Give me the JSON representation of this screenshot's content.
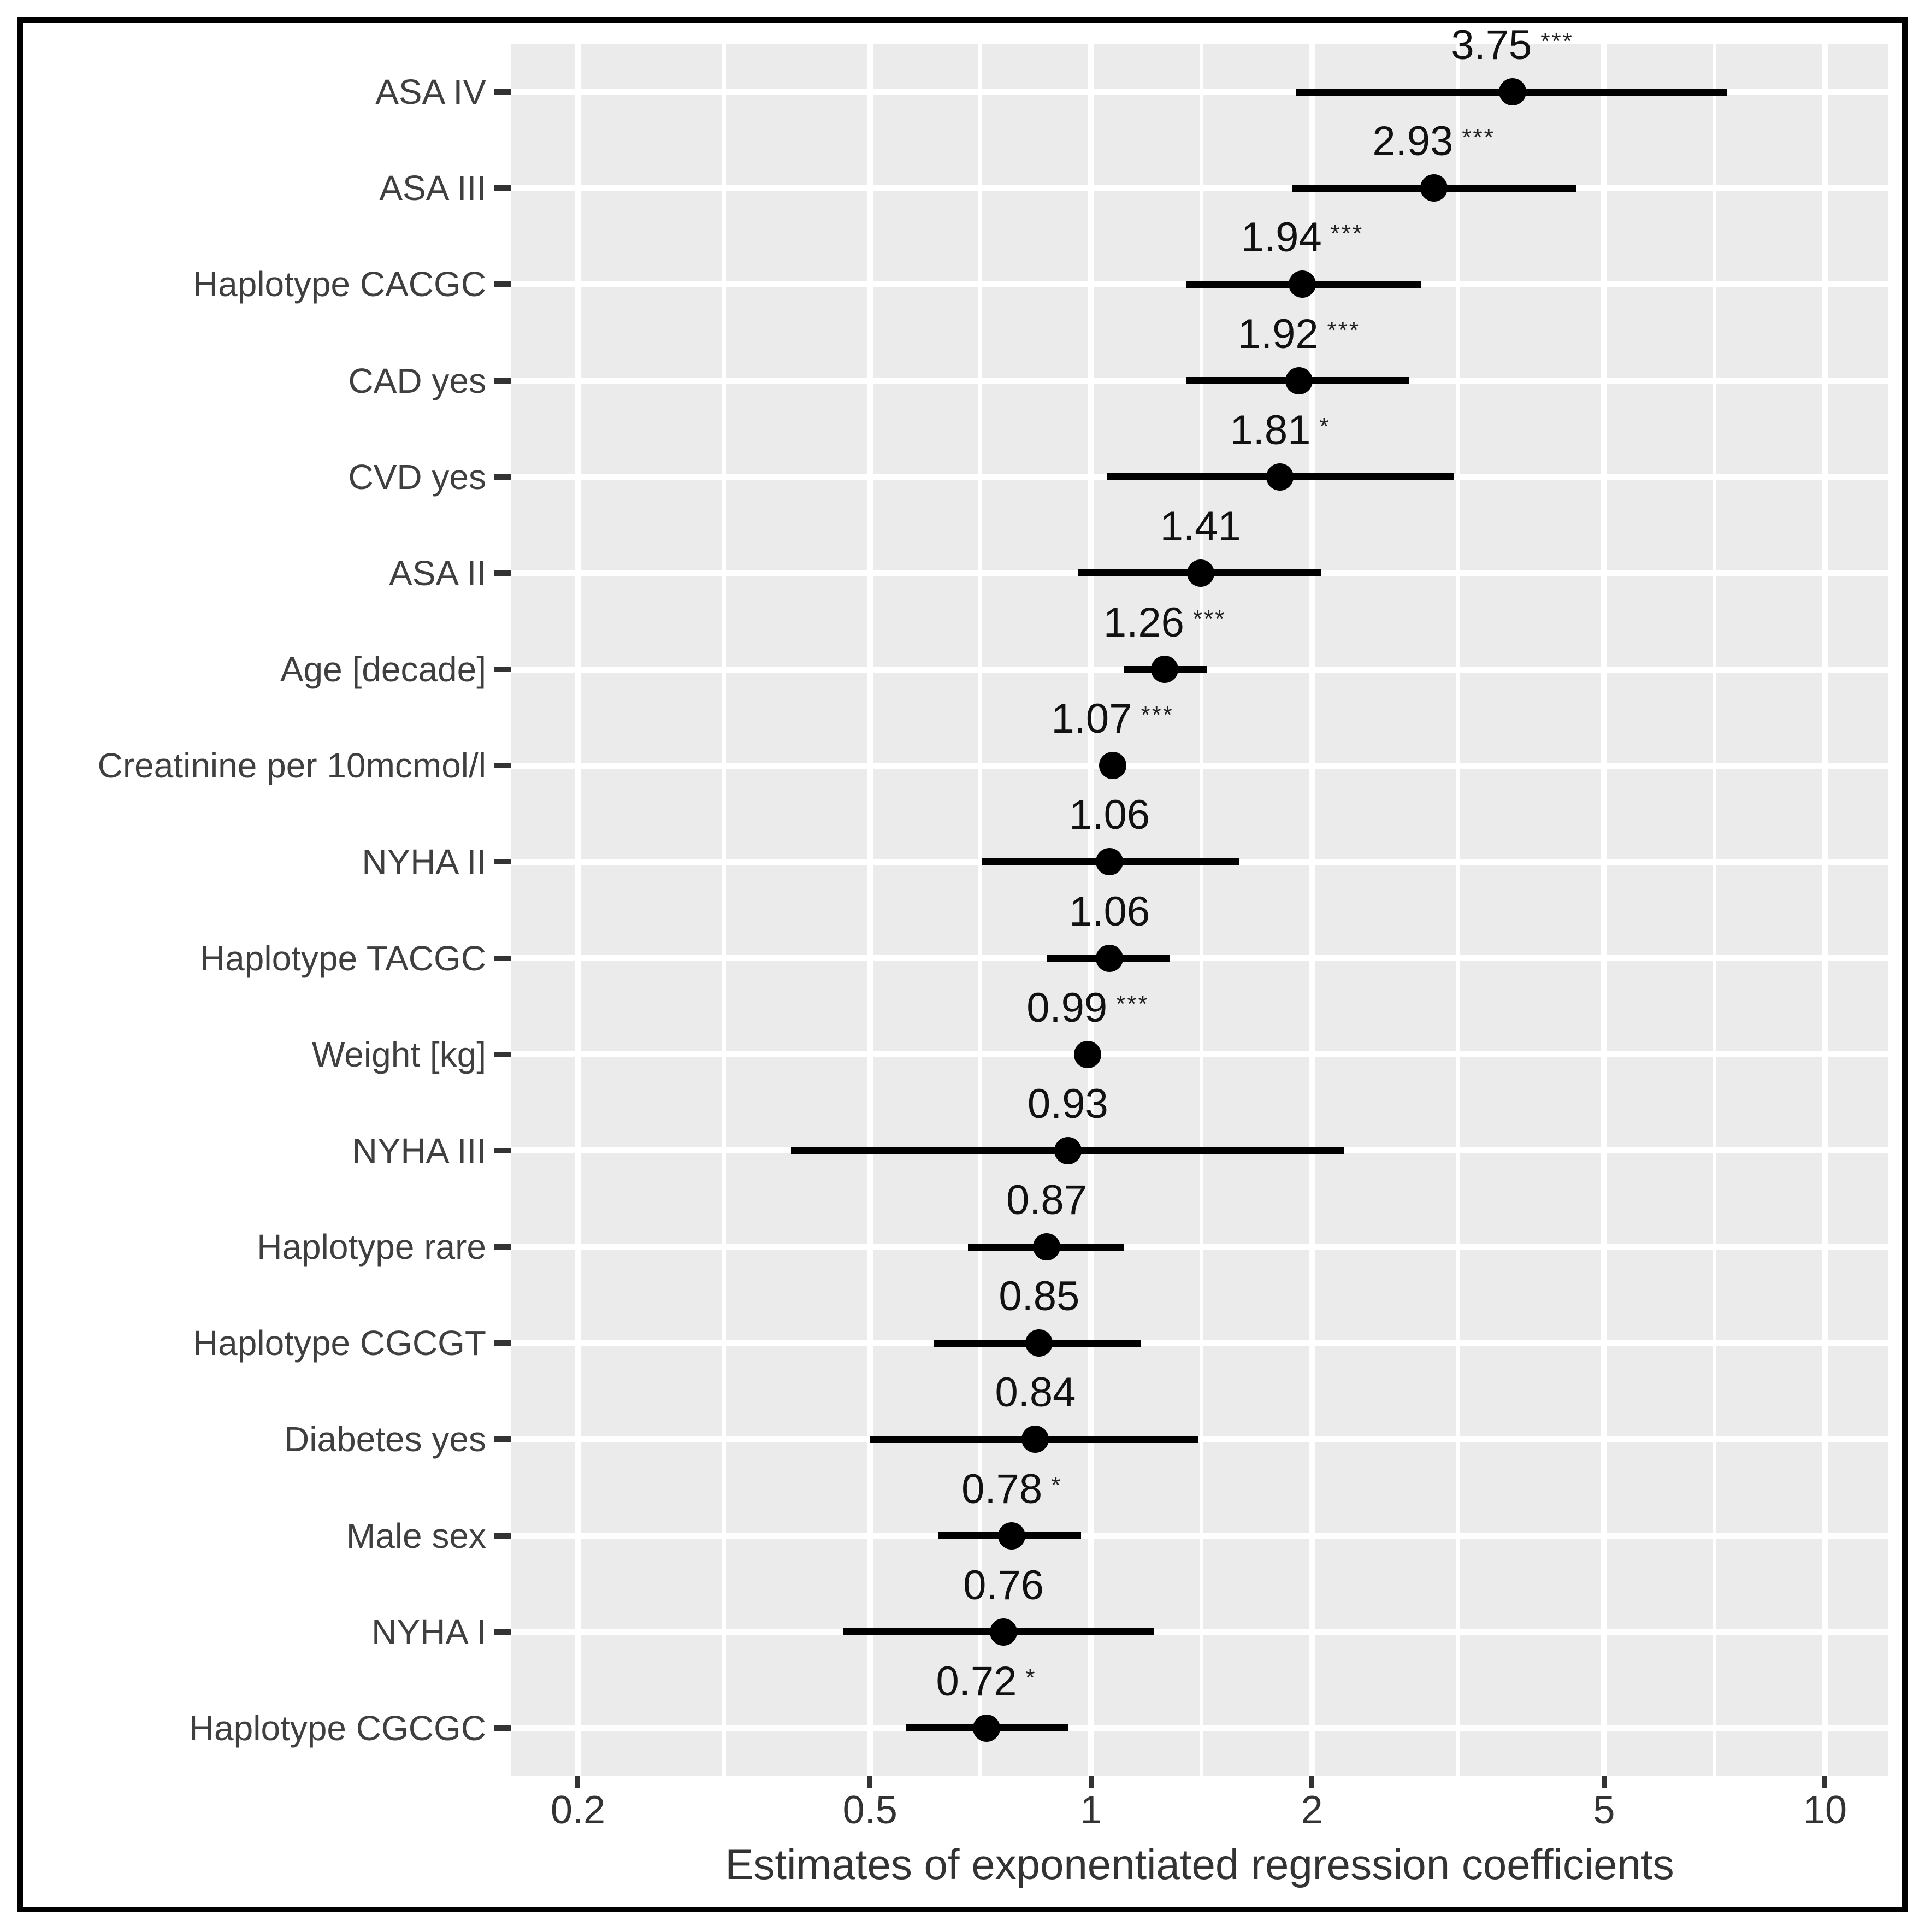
{
  "figure": {
    "x_axis_title": "Estimates of exponentiated regression coefficients"
  },
  "chart_data": {
    "type": "scatter",
    "subtype": "forest-plot",
    "title": "",
    "xlabel": "Estimates of exponentiated regression coefficients",
    "ylabel": "",
    "x_scale": "log10",
    "x_domain": [
      0.162,
      12.2
    ],
    "x_ticks": [
      {
        "value": 0.2,
        "label": "0.2"
      },
      {
        "value": 0.5,
        "label": "0.5"
      },
      {
        "value": 1,
        "label": "1"
      },
      {
        "value": 2,
        "label": "2"
      },
      {
        "value": 5,
        "label": "5"
      },
      {
        "value": 10,
        "label": "10"
      }
    ],
    "x_minor_ticks": [
      0.3162,
      0.7071,
      1.4142,
      3.1623,
      7.0711
    ],
    "grid": true,
    "legend": "none",
    "rows": [
      {
        "label": "ASA IV",
        "estimate": 3.75,
        "stars": "***",
        "ci_low": 1.9,
        "ci_high": 7.35
      },
      {
        "label": "ASA III",
        "estimate": 2.93,
        "stars": "***",
        "ci_low": 1.88,
        "ci_high": 4.58
      },
      {
        "label": "Haplotype CACGC",
        "estimate": 1.94,
        "stars": "***",
        "ci_low": 1.35,
        "ci_high": 2.82
      },
      {
        "label": "CAD yes",
        "estimate": 1.92,
        "stars": "***",
        "ci_low": 1.35,
        "ci_high": 2.71
      },
      {
        "label": "CVD yes",
        "estimate": 1.81,
        "stars": "*",
        "ci_low": 1.05,
        "ci_high": 3.12
      },
      {
        "label": "ASA II",
        "estimate": 1.41,
        "stars": "",
        "ci_low": 0.96,
        "ci_high": 2.06
      },
      {
        "label": "Age [decade]",
        "estimate": 1.26,
        "stars": "***",
        "ci_low": 1.11,
        "ci_high": 1.44
      },
      {
        "label": "Creatinine per 10mcmol/l",
        "estimate": 1.07,
        "stars": "***",
        "ci_low": 1.04,
        "ci_high": 1.1
      },
      {
        "label": "NYHA II",
        "estimate": 1.06,
        "stars": "",
        "ci_low": 0.71,
        "ci_high": 1.59
      },
      {
        "label": "Haplotype TACGC",
        "estimate": 1.06,
        "stars": "",
        "ci_low": 0.87,
        "ci_high": 1.28
      },
      {
        "label": "Weight [kg]",
        "estimate": 0.99,
        "stars": "***",
        "ci_low": 0.98,
        "ci_high": 1.0
      },
      {
        "label": "NYHA III",
        "estimate": 0.93,
        "stars": "",
        "ci_low": 0.39,
        "ci_high": 2.21
      },
      {
        "label": "Haplotype rare",
        "estimate": 0.87,
        "stars": "",
        "ci_low": 0.68,
        "ci_high": 1.11
      },
      {
        "label": "Haplotype CGCGT",
        "estimate": 0.85,
        "stars": "",
        "ci_low": 0.61,
        "ci_high": 1.17
      },
      {
        "label": "Diabetes yes",
        "estimate": 0.84,
        "stars": "",
        "ci_low": 0.5,
        "ci_high": 1.4
      },
      {
        "label": "Male sex",
        "estimate": 0.78,
        "stars": "*",
        "ci_low": 0.62,
        "ci_high": 0.97
      },
      {
        "label": "NYHA I",
        "estimate": 0.76,
        "stars": "",
        "ci_low": 0.46,
        "ci_high": 1.22
      },
      {
        "label": "Haplotype CGCGC",
        "estimate": 0.72,
        "stars": "*",
        "ci_low": 0.56,
        "ci_high": 0.93
      }
    ],
    "colors": {
      "panel_background": "#EBEBEB",
      "gridline": "#FFFFFF",
      "point_and_ci": "#000000",
      "row_label_text": "#3F3F3F",
      "tick_text": "#333333",
      "border": "#000000",
      "page_background": "#FFFFFF"
    }
  }
}
